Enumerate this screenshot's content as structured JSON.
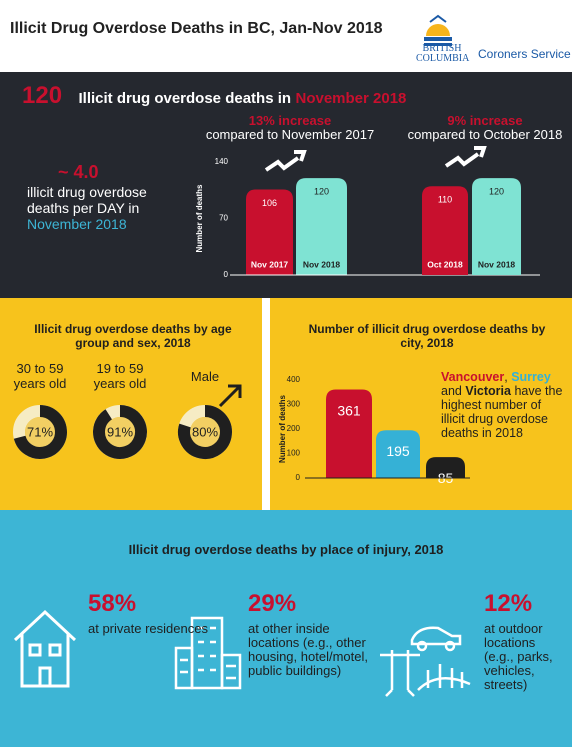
{
  "header": {
    "title": "Illicit Drug Overdose Deaths in BC, Jan-Nov 2018",
    "logo": [
      "BRITISH",
      "COLUMBIA"
    ],
    "service": "Coroners Service"
  },
  "monthly": {
    "count": 120,
    "headline": "Illicit drug overdose deaths in",
    "month": "November 2018"
  },
  "per_day": {
    "value": "~ 4.0",
    "text": "illicit drug overdose deaths per DAY in",
    "month": "November 2018"
  },
  "place": {
    "title": "Illicit drug overdose  deaths by place of injury, 2018",
    "items": [
      {
        "value": "58%",
        "text": "at private residences"
      },
      {
        "value": "29%",
        "text": "at other inside locations (e.g., other housing, hotel/motel, public buildings)"
      },
      {
        "value": "12%",
        "text": "at outdoor locations (e.g., parks, vehicles, streets)"
      }
    ]
  },
  "chart_data": [
    {
      "type": "bar",
      "title": "13% increase",
      "subtitle": "compared to November 2017",
      "y_label": "Number of deaths",
      "categories": [
        "Nov 2017",
        "Nov 2018"
      ],
      "values": [
        106,
        120
      ],
      "colors": [
        "#c8102e",
        "#7fe3d3"
      ],
      "ylim": [
        0,
        140
      ],
      "yticks": [
        0,
        70,
        140
      ]
    },
    {
      "type": "bar",
      "title": "9% increase",
      "subtitle": "compared to October 2018",
      "categories": [
        "Oct 2018",
        "Nov 2018"
      ],
      "values": [
        110,
        120
      ],
      "colors": [
        "#c8102e",
        "#7fe3d3"
      ],
      "ylim": [
        0,
        140
      ]
    },
    {
      "type": "donut",
      "title": "Illicit drug overdose  deaths by age group and sex, 2018",
      "categories": [
        "30 to 59 years old",
        "19 to 59 years old",
        "Male"
      ],
      "values": [
        71,
        91,
        80
      ],
      "value_labels": [
        "71%",
        "91%",
        "80%"
      ],
      "color": "#1f1f1f"
    },
    {
      "type": "bar",
      "title": "Number of illicit drug overdose deaths by city, 2018",
      "y_label": "Number of deaths",
      "values": [
        361,
        195,
        85
      ],
      "colors": [
        "#c8102e",
        "#35b1d6",
        "#1f1f1f"
      ],
      "ylim": [
        0,
        400
      ],
      "yticks": [
        0,
        100,
        200,
        300,
        400
      ],
      "annotation": [
        {
          "text": "Vancouver",
          "color": "#c8102e"
        },
        {
          "text": ", "
        },
        {
          "text": "Surrey",
          "color": "#35b1d6"
        },
        {
          "text": " and "
        },
        {
          "text": "Victoria"
        },
        {
          "text": " have the highest number of illicit drug overdose deaths in 2018"
        }
      ]
    }
  ]
}
